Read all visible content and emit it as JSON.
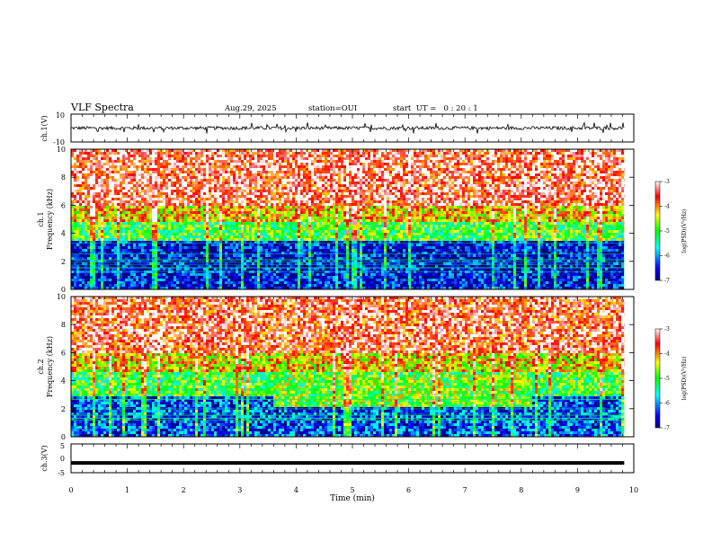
{
  "header": {
    "title": "VLF Spectra",
    "date": "Aug.29, 2025",
    "station": "station=OUI",
    "start": "start  UT =   0 : 20 : 1"
  },
  "chart_data": [
    {
      "type": "line",
      "name": "ch1_waveform",
      "ylabel": "ch.1(V)",
      "ylim": [
        -10,
        10
      ],
      "yticks": [
        "10",
        "-10"
      ],
      "x_range_min": [
        0,
        9.83
      ],
      "baseline_v": 0,
      "noise_amplitude_v": 1.2,
      "spike_amplitude_v": 4
    },
    {
      "type": "heatmap",
      "name": "ch1_spectrogram",
      "ylabel_lines": [
        "ch.1",
        "Frequency (kHz)"
      ],
      "ylim": [
        0,
        10
      ],
      "yticks": [
        "0",
        "2",
        "4",
        "6",
        "8",
        "10"
      ],
      "x_range_min": [
        0,
        9.83
      ],
      "colorbar": {
        "label": "log(PSD)(V²/Hz)",
        "ticks": [
          "-3",
          "-4",
          "-5",
          "-6",
          "-7"
        ],
        "range": [
          -7,
          -3
        ]
      },
      "bands": [
        {
          "f_low_khz": 0,
          "f_high_khz": 3.5,
          "log_psd": -6.6
        },
        {
          "f_low_khz": 3.5,
          "f_high_khz": 5.0,
          "log_psd": -5.0
        },
        {
          "f_low_khz": 5.0,
          "f_high_khz": 6.0,
          "log_psd": -4.2
        },
        {
          "f_low_khz": 6.0,
          "f_high_khz": 10.0,
          "log_psd": -3.4
        }
      ]
    },
    {
      "type": "heatmap",
      "name": "ch2_spectrogram",
      "ylabel_lines": [
        "ch.2",
        "Frequency (kHz)"
      ],
      "ylim": [
        0,
        10
      ],
      "yticks": [
        "0",
        "2",
        "4",
        "6",
        "8",
        "10"
      ],
      "x_range_min": [
        0,
        9.83
      ],
      "colorbar": {
        "label": "log(PSD)(V²/Hz)",
        "ticks": [
          "-3",
          "-4",
          "-5",
          "-6",
          "-7"
        ],
        "range": [
          -7,
          -3
        ]
      },
      "bands": [
        {
          "f_low_khz": 0,
          "f_high_khz": 3.0,
          "log_psd": -6.3
        },
        {
          "f_low_khz": 3.0,
          "f_high_khz": 4.8,
          "log_psd": -5.0
        },
        {
          "f_low_khz": 4.8,
          "f_high_khz": 6.0,
          "log_psd": -4.3
        },
        {
          "f_low_khz": 6.0,
          "f_high_khz": 10.0,
          "log_psd": -3.5
        }
      ],
      "emission": {
        "t_start_min": 3.55,
        "t_end_min": 8.15,
        "f_low_khz": 2.2,
        "f_high_khz": 4.6
      }
    },
    {
      "type": "line",
      "name": "ch3_waveform",
      "ylabel": "ch.3(V)",
      "ylim": [
        -5,
        5
      ],
      "yticks": [
        "5",
        "0",
        "-5"
      ],
      "x_range_min": [
        0,
        9.83
      ],
      "values": [
        -1.6,
        -1.6
      ]
    }
  ],
  "xaxis": {
    "label": "Time (min)",
    "ticks": [
      "0",
      "1",
      "2",
      "3",
      "4",
      "5",
      "6",
      "7",
      "8",
      "9",
      "10"
    ],
    "xlim": [
      0,
      10
    ]
  }
}
